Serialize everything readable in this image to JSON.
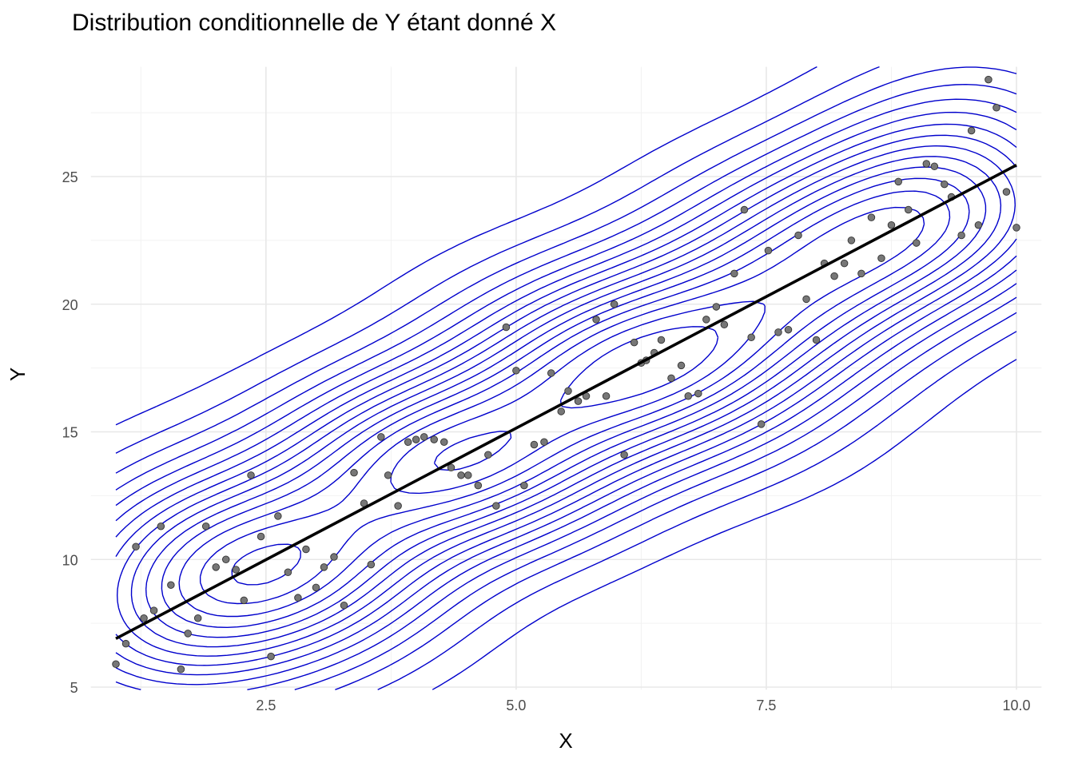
{
  "chart_data": {
    "type": "scatter",
    "title": "Distribution conditionnelle de Y étant donné X",
    "xlabel": "X",
    "ylabel": "Y",
    "xlim": [
      0.75,
      10.25
    ],
    "ylim": [
      4.9,
      29.3
    ],
    "x_ticks": [
      "2.5",
      "5.0",
      "7.5",
      "10.0"
    ],
    "x_tick_values": [
      2.5,
      5.0,
      7.5,
      10.0
    ],
    "y_ticks": [
      "5",
      "10",
      "15",
      "20",
      "25"
    ],
    "y_tick_values": [
      5,
      10,
      15,
      20,
      25
    ],
    "grid": true,
    "regression_line": {
      "x": [
        1.0,
        10.0
      ],
      "y": [
        6.9,
        25.45
      ],
      "color": "#000000"
    },
    "contour_color": "#0000cc",
    "point_color": "#777777",
    "points": [
      [
        1.0,
        5.9
      ],
      [
        1.1,
        6.7
      ],
      [
        1.2,
        10.5
      ],
      [
        1.28,
        7.7
      ],
      [
        1.38,
        8.0
      ],
      [
        1.45,
        11.3
      ],
      [
        1.55,
        9.0
      ],
      [
        1.65,
        5.7
      ],
      [
        1.72,
        7.1
      ],
      [
        1.82,
        7.7
      ],
      [
        1.9,
        11.3
      ],
      [
        2.0,
        9.7
      ],
      [
        2.1,
        10.0
      ],
      [
        2.2,
        9.6
      ],
      [
        2.28,
        8.4
      ],
      [
        2.35,
        13.3
      ],
      [
        2.45,
        10.9
      ],
      [
        2.55,
        6.2
      ],
      [
        2.62,
        11.7
      ],
      [
        2.72,
        9.5
      ],
      [
        2.82,
        8.5
      ],
      [
        2.9,
        10.4
      ],
      [
        3.0,
        8.9
      ],
      [
        3.08,
        9.7
      ],
      [
        3.18,
        10.1
      ],
      [
        3.28,
        8.2
      ],
      [
        3.38,
        13.4
      ],
      [
        3.48,
        12.2
      ],
      [
        3.55,
        9.8
      ],
      [
        3.65,
        14.8
      ],
      [
        3.72,
        13.3
      ],
      [
        3.82,
        12.1
      ],
      [
        3.92,
        14.6
      ],
      [
        4.0,
        14.7
      ],
      [
        4.08,
        14.8
      ],
      [
        4.18,
        14.7
      ],
      [
        4.28,
        14.6
      ],
      [
        4.35,
        13.6
      ],
      [
        4.45,
        13.3
      ],
      [
        4.52,
        13.3
      ],
      [
        4.62,
        12.9
      ],
      [
        4.72,
        14.1
      ],
      [
        4.8,
        12.1
      ],
      [
        4.9,
        19.1
      ],
      [
        5.0,
        17.4
      ],
      [
        5.08,
        12.9
      ],
      [
        5.18,
        14.5
      ],
      [
        5.28,
        14.6
      ],
      [
        5.35,
        17.3
      ],
      [
        5.45,
        15.8
      ],
      [
        5.52,
        16.6
      ],
      [
        5.62,
        16.2
      ],
      [
        5.7,
        16.4
      ],
      [
        5.8,
        19.4
      ],
      [
        5.9,
        16.4
      ],
      [
        5.98,
        20.0
      ],
      [
        6.08,
        14.1
      ],
      [
        6.18,
        18.5
      ],
      [
        6.25,
        17.7
      ],
      [
        6.3,
        17.8
      ],
      [
        6.38,
        18.1
      ],
      [
        6.45,
        18.6
      ],
      [
        6.55,
        17.1
      ],
      [
        6.65,
        17.6
      ],
      [
        6.72,
        16.4
      ],
      [
        6.82,
        16.5
      ],
      [
        6.9,
        19.4
      ],
      [
        7.0,
        19.9
      ],
      [
        7.08,
        19.2
      ],
      [
        7.18,
        21.2
      ],
      [
        7.28,
        23.7
      ],
      [
        7.35,
        18.7
      ],
      [
        7.45,
        15.3
      ],
      [
        7.52,
        22.1
      ],
      [
        7.62,
        18.9
      ],
      [
        7.72,
        19.0
      ],
      [
        7.82,
        22.7
      ],
      [
        7.9,
        20.2
      ],
      [
        8.0,
        18.6
      ],
      [
        8.08,
        21.6
      ],
      [
        8.18,
        21.1
      ],
      [
        8.28,
        21.6
      ],
      [
        8.35,
        22.5
      ],
      [
        8.45,
        21.2
      ],
      [
        8.55,
        23.4
      ],
      [
        8.65,
        21.8
      ],
      [
        8.75,
        23.1
      ],
      [
        8.82,
        24.8
      ],
      [
        8.92,
        23.7
      ],
      [
        9.0,
        22.4
      ],
      [
        9.1,
        25.5
      ],
      [
        9.18,
        25.4
      ],
      [
        9.28,
        24.7
      ],
      [
        9.35,
        24.2
      ],
      [
        9.45,
        22.7
      ],
      [
        9.55,
        26.8
      ],
      [
        9.62,
        23.1
      ],
      [
        9.72,
        28.8
      ],
      [
        9.8,
        27.7
      ],
      [
        9.9,
        24.4
      ],
      [
        10.0,
        23.0
      ]
    ]
  }
}
